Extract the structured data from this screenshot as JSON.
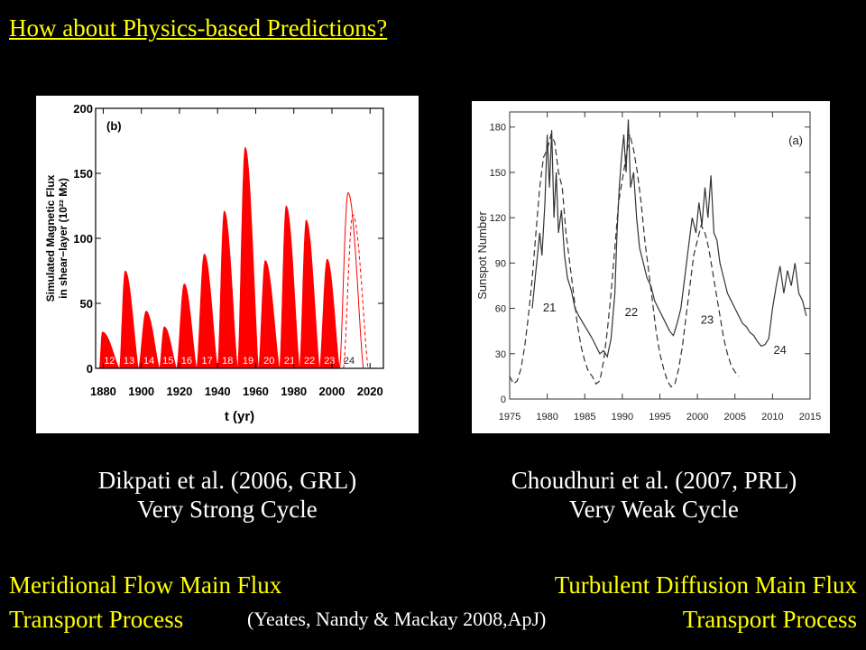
{
  "title": "How about Physics-based  Predictions?",
  "captions": {
    "left_author": "Dikpati et al. (2006, GRL)",
    "left_result": "Very Strong Cycle",
    "right_author": "Choudhuri  et al. (2007, PRL)",
    "right_result": "Very Weak Cycle"
  },
  "bottom": {
    "left_line1": "Meridional Flow Main Flux",
    "left_line2": "Transport Process",
    "right_line1": "Turbulent  Diffusion  Main Flux",
    "right_line2": "Transport Process",
    "reference": "(Yeates, Nandy & Mackay 2008,ApJ)"
  },
  "colors": {
    "background": "#000000",
    "highlight": "#ffff00",
    "fill_red": "#ff0000"
  },
  "chart_data": [
    {
      "type": "area",
      "panel_label": "(b)",
      "xlabel": "t (yr)",
      "ylabel_line1": "Simulated Magnetic Flux",
      "ylabel_line2": "in shear−layer (10²² Mx)",
      "xlim": [
        1876,
        2027
      ],
      "ylim": [
        0,
        200
      ],
      "xticks": [
        1880,
        1900,
        1920,
        1940,
        1960,
        1980,
        2000,
        2020
      ],
      "yticks": [
        0,
        50,
        100,
        150,
        200
      ],
      "cycles": [
        {
          "label": "12",
          "start": 1878.0,
          "peak": 1879.5,
          "end": 1888.5,
          "value": 28
        },
        {
          "label": "13",
          "start": 1888.5,
          "peak": 1891.5,
          "end": 1898.5,
          "value": 75
        },
        {
          "label": "14",
          "start": 1898.5,
          "peak": 1902.5,
          "end": 1909.5,
          "value": 44
        },
        {
          "label": "15",
          "start": 1909.5,
          "peak": 1912.0,
          "end": 1918.5,
          "value": 32
        },
        {
          "label": "16",
          "start": 1918.5,
          "peak": 1922.5,
          "end": 1929.0,
          "value": 65
        },
        {
          "label": "17",
          "start": 1929.0,
          "peak": 1933.0,
          "end": 1940.0,
          "value": 88
        },
        {
          "label": "18",
          "start": 1940.0,
          "peak": 1943.5,
          "end": 1950.5,
          "value": 121
        },
        {
          "label": "19",
          "start": 1950.5,
          "peak": 1954.5,
          "end": 1961.5,
          "value": 170
        },
        {
          "label": "20",
          "start": 1961.5,
          "peak": 1965.0,
          "end": 1972.5,
          "value": 83
        },
        {
          "label": "21",
          "start": 1972.5,
          "peak": 1976.0,
          "end": 1983.0,
          "value": 125
        },
        {
          "label": "22",
          "start": 1983.0,
          "peak": 1986.5,
          "end": 1993.5,
          "value": 114
        },
        {
          "label": "23",
          "start": 1993.5,
          "peak": 1997.5,
          "end": 2004.0,
          "value": 84
        }
      ],
      "prediction": {
        "label": "24",
        "solid": {
          "start": 2004.0,
          "peak": 2008.5,
          "end": 2016.5,
          "value": 135
        },
        "dashed": {
          "start": 2006.0,
          "peak": 2011.0,
          "end": 2019.0,
          "value": 118
        }
      }
    },
    {
      "type": "line",
      "panel_label": "(a)",
      "ylabel": "Sunspot Number",
      "xlim": [
        1975,
        2015
      ],
      "ylim": [
        0,
        190
      ],
      "xticks": [
        1975,
        1980,
        1985,
        1990,
        1995,
        2000,
        2005,
        2010,
        2015
      ],
      "yticks": [
        0,
        30,
        60,
        90,
        120,
        150,
        180
      ],
      "cycle_labels": [
        {
          "label": "21",
          "x": 1980.3,
          "y": 58
        },
        {
          "label": "22",
          "x": 1991.2,
          "y": 55
        },
        {
          "label": "23",
          "x": 2001.3,
          "y": 50
        },
        {
          "label": "24",
          "x": 2011.0,
          "y": 30
        }
      ],
      "series": [
        {
          "style": "solid",
          "x": [
            1978.0,
            1978.5,
            1979.0,
            1979.3,
            1979.7,
            1980.0,
            1980.3,
            1980.6,
            1980.9,
            1981.2,
            1981.5,
            1981.9,
            1982.3,
            1982.7,
            1983.2,
            1983.7,
            1984.2,
            1984.8,
            1985.4,
            1986.0,
            1986.5,
            1987.0,
            1987.5,
            1988.0,
            1988.5,
            1989.0,
            1989.3,
            1989.6,
            1989.9,
            1990.2,
            1990.5,
            1990.8,
            1991.1,
            1991.5,
            1991.9,
            1992.3,
            1992.8,
            1993.3,
            1993.8,
            1994.3,
            1994.8,
            1995.3,
            1995.8,
            1996.3,
            1996.8,
            1997.3,
            1997.8,
            1998.3,
            1998.8,
            1999.3,
            1999.8,
            2000.2,
            2000.6,
            2001.0,
            2001.4,
            2001.8,
            2002.2,
            2002.6,
            2003.0,
            2003.5,
            2004.0,
            2004.5,
            2005.0,
            2005.5,
            2006.0,
            2006.5,
            2007.0,
            2007.5,
            2008.0,
            2008.5,
            2009.0,
            2009.5,
            2010.0,
            2010.5,
            2011.0,
            2011.5,
            2012.0,
            2012.5,
            2013.0,
            2013.5,
            2014.0,
            2014.5
          ],
          "y": [
            60,
            85,
            110,
            95,
            130,
            175,
            140,
            178,
            120,
            150,
            110,
            125,
            95,
            80,
            72,
            60,
            55,
            50,
            45,
            40,
            35,
            30,
            32,
            28,
            40,
            70,
            110,
            140,
            160,
            175,
            150,
            185,
            140,
            150,
            120,
            100,
            90,
            80,
            75,
            65,
            60,
            55,
            50,
            45,
            42,
            50,
            60,
            80,
            100,
            120,
            110,
            130,
            115,
            140,
            120,
            148,
            110,
            105,
            90,
            80,
            70,
            65,
            60,
            55,
            50,
            48,
            44,
            42,
            38,
            35,
            36,
            40,
            60,
            75,
            88,
            70,
            85,
            75,
            90,
            70,
            65,
            55
          ]
        },
        {
          "style": "dashed",
          "x": [
            1975.0,
            1975.5,
            1976.0,
            1976.5,
            1977.0,
            1977.5,
            1978.0,
            1978.5,
            1979.0,
            1979.5,
            1980.0,
            1980.5,
            1981.0,
            1981.5,
            1982.0,
            1982.5,
            1983.0,
            1983.5,
            1984.0,
            1984.5,
            1985.0,
            1985.5,
            1986.0,
            1986.5,
            1987.0,
            1987.5,
            1988.0,
            1988.5,
            1989.0,
            1989.5,
            1990.0,
            1990.5,
            1991.0,
            1991.5,
            1992.0,
            1992.5,
            1993.0,
            1993.5,
            1994.0,
            1994.5,
            1995.0,
            1995.5,
            1996.0,
            1996.5,
            1997.0,
            1997.5,
            1998.0,
            1998.5,
            1999.0,
            1999.5,
            2000.0,
            2000.5,
            2001.0,
            2001.5,
            2002.0,
            2002.5,
            2003.0,
            2003.5,
            2004.0,
            2004.5,
            2005.0,
            2005.5
          ],
          "y": [
            15,
            10,
            12,
            20,
            35,
            55,
            80,
            110,
            140,
            160,
            165,
            175,
            170,
            150,
            140,
            110,
            90,
            70,
            50,
            35,
            25,
            18,
            15,
            10,
            12,
            25,
            45,
            70,
            100,
            130,
            145,
            160,
            175,
            165,
            150,
            130,
            105,
            85,
            65,
            45,
            30,
            20,
            12,
            8,
            10,
            20,
            35,
            55,
            75,
            95,
            105,
            115,
            110,
            100,
            85,
            70,
            55,
            40,
            30,
            22,
            18,
            15
          ]
        }
      ]
    }
  ]
}
